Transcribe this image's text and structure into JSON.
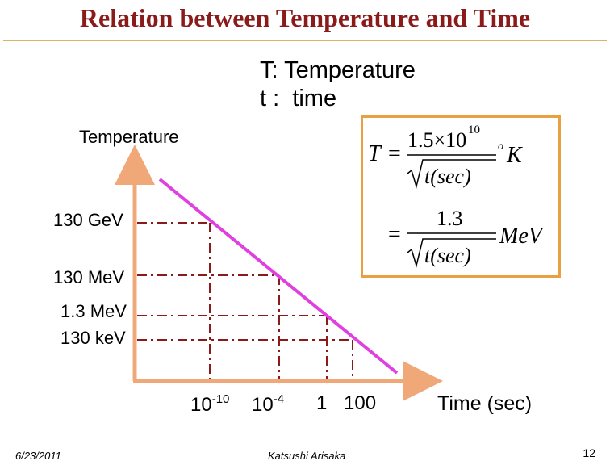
{
  "title": "Relation between Temperature and Time",
  "legend": {
    "line1": "T: Temperature",
    "line2": "t :  time"
  },
  "formula": {
    "lhs": "T",
    "eq": "=",
    "num1": "1.5×10",
    "num1_exp": "10",
    "den": "t(sec)",
    "unit1": "K",
    "unit1_deg": "o",
    "num2": "1.3",
    "unit2": "MeV"
  },
  "graph": {
    "y_axis_title": "Temperature",
    "x_axis_title": "Time (sec)",
    "y_labels": [
      "130 GeV",
      "130 MeV",
      "1.3 MeV",
      "130 keV"
    ],
    "x_labels": [
      {
        "base": "10",
        "exp": "-10"
      },
      {
        "base": "10",
        "exp": "-4"
      },
      {
        "base": "1",
        "exp": ""
      },
      {
        "base": "100",
        "exp": ""
      }
    ],
    "line_color": "#e040e0",
    "axis_color": "#f0a878",
    "guide_color": "#8b1a1a"
  },
  "footer": {
    "date": "6/23/2011",
    "author": "Katsushi Arisaka",
    "page": "12"
  }
}
